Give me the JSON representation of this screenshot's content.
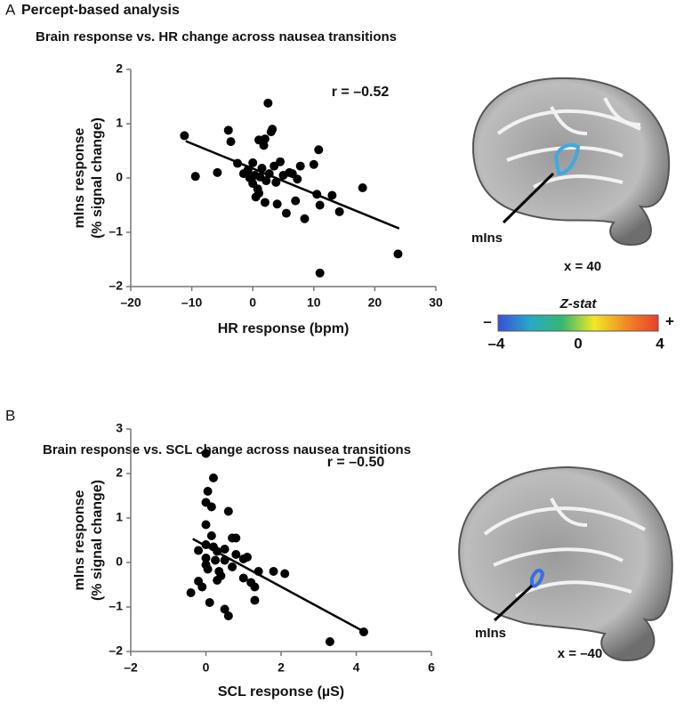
{
  "figure": {
    "panel_a": "A",
    "heading_a": "Percept-based analysis",
    "panel_b": "B",
    "brain_a": {
      "region": "mIns",
      "slice": "x = 40"
    },
    "brain_b": {
      "region": "mIns",
      "slice": "x = –40"
    },
    "colorbar": {
      "title": "Z-stat",
      "minus": "–",
      "plus": "+",
      "ticks": [
        {
          "value": -4,
          "label": "–4"
        },
        0,
        4
      ],
      "lim": [
        -4,
        4
      ],
      "colors": [
        "#3a4fd8",
        "#2aa8c8",
        "#36b870",
        "#f2e826",
        "#f08a24",
        "#e8402a"
      ]
    }
  },
  "chart_data": [
    {
      "type": "scatter",
      "title": "Brain response vs. HR change across nausea transitions",
      "xlabel": "HR response (bpm)",
      "ylabel": [
        "mIns response",
        "(% signal change)"
      ],
      "annotation": "r = –0.52",
      "color": "#000000",
      "x": [
        -11.2,
        -9.4,
        -5.8,
        -4,
        -3.6,
        -2.5,
        -1.5,
        -0.8,
        -0.5,
        0,
        0.3,
        0.5,
        0.8,
        1,
        1.2,
        1.5,
        1.8,
        2,
        2.2,
        2.5,
        2.7,
        3,
        3.2,
        3.5,
        3.8,
        4,
        4.5,
        5,
        5.5,
        6,
        6.5,
        7,
        7.3,
        7.8,
        8.5,
        10,
        10.5,
        10.8,
        11,
        11,
        13,
        14.2,
        18,
        23.8,
        1,
        2,
        0
      ],
      "y": [
        0.78,
        0.03,
        0.1,
        0.88,
        0.67,
        0.27,
        0.08,
        0.15,
        0,
        -0.1,
        0.05,
        -0.35,
        -0.2,
        0.7,
        0.02,
        0.18,
        0.6,
        0.72,
        -0.05,
        1.38,
        0.08,
        0.85,
        0.9,
        0.22,
        -0.08,
        -0.48,
        0.3,
        0.05,
        -0.65,
        0.1,
        0.08,
        -0.42,
        -0.02,
        0.22,
        -0.75,
        0.25,
        -0.3,
        0.52,
        -0.5,
        -1.75,
        -0.32,
        -0.62,
        -0.18,
        -1.4,
        -0.28,
        -0.45,
        0.28
      ],
      "fit_line": {
        "x": [
          -11,
          24
        ],
        "y": [
          0.68,
          -0.93
        ]
      },
      "xlim": [
        -20,
        30
      ],
      "xticks": [
        {
          "value": -20,
          "label": "–20"
        },
        {
          "value": -10,
          "label": "–10"
        },
        0,
        10,
        20,
        30
      ],
      "ylim": [
        -2,
        2
      ],
      "yticks": [
        {
          "value": -2,
          "label": "–2"
        },
        {
          "value": -1,
          "label": "–1"
        },
        0,
        1,
        2
      ]
    },
    {
      "type": "scatter",
      "title": "Brain response vs. SCL change across nausea transitions",
      "xlabel": "SCL response (µS)",
      "ylabel": [
        "mIns response",
        "(% signal change)"
      ],
      "annotation": "r = –0.50",
      "color": "#000000",
      "x": [
        -0.4,
        -0.2,
        -0.2,
        0,
        0,
        0.05,
        0,
        0,
        0,
        0,
        0.05,
        0.1,
        0.15,
        0.15,
        0.2,
        0.2,
        0.25,
        0.3,
        0.3,
        0.4,
        0.5,
        0.5,
        0.5,
        0.6,
        0.6,
        0.7,
        0.7,
        0.8,
        0.8,
        1,
        1,
        1.1,
        1.2,
        1.3,
        1.3,
        1.4,
        1.8,
        2.1,
        3.3,
        4.2,
        0.35,
        -0.1
      ],
      "y": [
        -0.68,
        -0.42,
        0.27,
        2.45,
        1.35,
        1.6,
        0.85,
        0.4,
        0.1,
        -0.05,
        -0.15,
        -0.9,
        1.25,
        0.6,
        1.9,
        0.35,
        0.05,
        0.25,
        -0.4,
        -0.3,
        -1.05,
        0.05,
        0.3,
        1.15,
        -1.2,
        -0.1,
        0.55,
        0.55,
        0.18,
        -0.35,
        0.08,
        0.12,
        -0.45,
        -0.85,
        -0.55,
        -0.2,
        -0.2,
        -0.25,
        -1.78,
        -1.56,
        -0.2,
        -0.55
      ],
      "fit_line": {
        "x": [
          -0.35,
          4.2
        ],
        "y": [
          0.53,
          -1.55
        ]
      },
      "xlim": [
        -2,
        6
      ],
      "xticks": [
        {
          "value": -2,
          "label": "–2"
        },
        0,
        2,
        4,
        6
      ],
      "ylim": [
        -2,
        3
      ],
      "yticks": [
        {
          "value": -2,
          "label": "–2"
        },
        {
          "value": -1,
          "label": "–1"
        },
        0,
        1,
        2,
        3
      ]
    }
  ]
}
